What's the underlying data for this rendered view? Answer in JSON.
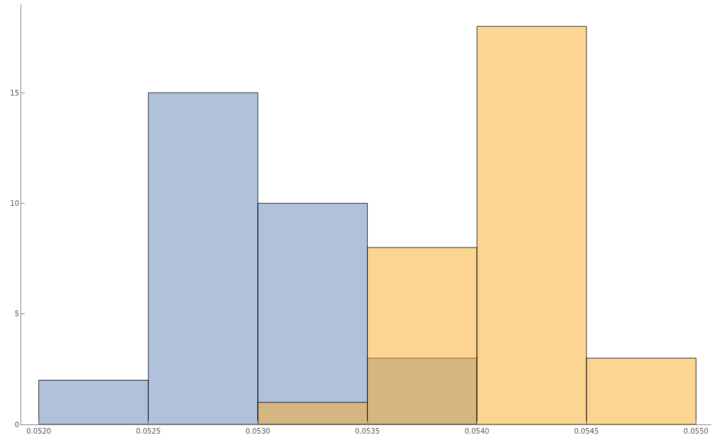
{
  "chart_data": {
    "type": "histogram",
    "bins": [
      0.052,
      0.0525,
      0.053,
      0.0535,
      0.054,
      0.0545,
      0.055
    ],
    "series": [
      {
        "color": "#b0c1dc",
        "values": [
          2,
          15,
          10,
          3,
          null,
          null
        ]
      },
      {
        "color": "#fcd592",
        "values": [
          null,
          null,
          1,
          8,
          18,
          3
        ]
      }
    ],
    "xlim": [
      0.05192,
      0.05507
    ],
    "ylim": [
      0,
      19
    ],
    "xticks": [
      {
        "value": 0.052,
        "label": "0.0520"
      },
      {
        "value": 0.0525,
        "label": "0.0525"
      },
      {
        "value": 0.053,
        "label": "0.0530"
      },
      {
        "value": 0.0535,
        "label": "0.0535"
      },
      {
        "value": 0.054,
        "label": "0.0540"
      },
      {
        "value": 0.0545,
        "label": "0.0545"
      },
      {
        "value": 0.055,
        "label": "0.0550"
      }
    ],
    "yticks": [
      0,
      5,
      10,
      15
    ]
  }
}
